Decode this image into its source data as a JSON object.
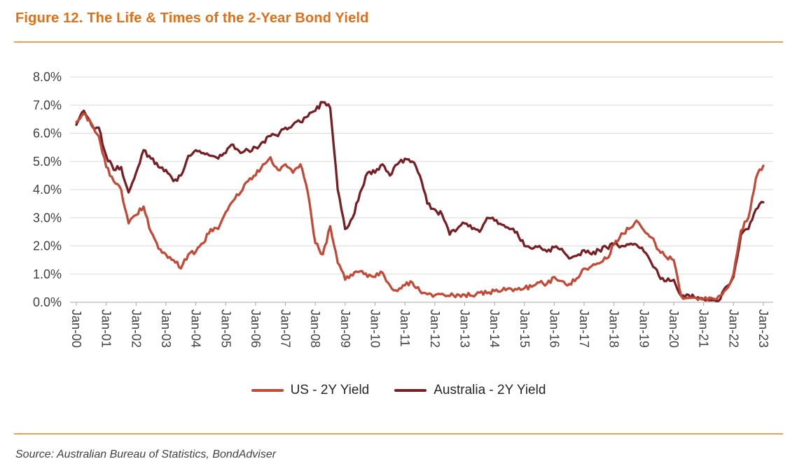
{
  "figure": {
    "title": "Figure 12. The Life & Times of the 2-Year Bond Yield",
    "source": "Source: Australian Bureau of Statistics, BondAdviser"
  },
  "colors": {
    "accent_orange": "#E06F1A",
    "rule_orange": "#E8A15A",
    "us_line": "#C24A38",
    "aus_line": "#762025",
    "grid": "#D9D9D9",
    "axis_line": "#A6A6A6",
    "axis_text": "#404040",
    "legend_text": "#262626",
    "source_text": "#404040"
  },
  "chart_data": {
    "type": "line",
    "title": "",
    "xlabel": "",
    "ylabel": "",
    "ylim": [
      0,
      8
    ],
    "grid": "horizontal",
    "legend_position": "bottom",
    "x_frequency": "quarterly (Jan-2000 to Jan-2023)",
    "y_tick_labels": [
      "0.0%",
      "1.0%",
      "2.0%",
      "3.0%",
      "4.0%",
      "5.0%",
      "6.0%",
      "7.0%",
      "8.0%"
    ],
    "x_tick_labels": [
      "Jan-00",
      "Jan-01",
      "Jan-02",
      "Jan-03",
      "Jan-04",
      "Jan-05",
      "Jan-06",
      "Jan-07",
      "Jan-08",
      "Jan-09",
      "Jan-10",
      "Jan-11",
      "Jan-12",
      "Jan-13",
      "Jan-14",
      "Jan-15",
      "Jan-16",
      "Jan-17",
      "Jan-18",
      "Jan-19",
      "Jan-20",
      "Jan-21",
      "Jan-22",
      "Jan-23"
    ],
    "series": [
      {
        "name": "US - 2Y Yield",
        "color": "#C24A38",
        "values": [
          6.4,
          6.7,
          6.35,
          5.9,
          4.8,
          4.3,
          4.0,
          2.8,
          3.1,
          3.4,
          2.5,
          1.9,
          1.7,
          1.5,
          1.2,
          1.7,
          1.8,
          2.1,
          2.6,
          2.6,
          3.2,
          3.6,
          3.9,
          4.3,
          4.5,
          4.9,
          5.15,
          4.7,
          4.9,
          4.6,
          4.9,
          3.9,
          2.1,
          1.7,
          2.7,
          1.4,
          0.8,
          0.95,
          1.1,
          0.9,
          0.9,
          1.05,
          0.6,
          0.4,
          0.6,
          0.7,
          0.4,
          0.28,
          0.25,
          0.3,
          0.22,
          0.28,
          0.27,
          0.23,
          0.34,
          0.32,
          0.4,
          0.42,
          0.5,
          0.45,
          0.5,
          0.55,
          0.7,
          0.65,
          0.9,
          0.75,
          0.65,
          0.85,
          1.2,
          1.28,
          1.38,
          1.55,
          2.05,
          2.45,
          2.6,
          2.9,
          2.55,
          2.3,
          1.85,
          1.6,
          1.5,
          0.22,
          0.15,
          0.15,
          0.12,
          0.16,
          0.22,
          0.45,
          1.0,
          2.55,
          3.0,
          4.4,
          4.85
        ]
      },
      {
        "name": "Australia - 2Y Yield",
        "color": "#762025",
        "values": [
          6.3,
          6.8,
          6.3,
          6.2,
          5.2,
          4.7,
          4.8,
          3.9,
          4.6,
          5.4,
          5.1,
          4.8,
          4.7,
          4.3,
          4.5,
          5.2,
          5.4,
          5.3,
          5.2,
          5.1,
          5.3,
          5.6,
          5.3,
          5.4,
          5.5,
          5.7,
          5.9,
          5.9,
          6.2,
          6.3,
          6.4,
          6.6,
          6.8,
          7.1,
          6.9,
          4.0,
          2.6,
          3.0,
          3.9,
          4.6,
          4.6,
          4.9,
          4.5,
          4.9,
          5.1,
          5.0,
          4.5,
          3.5,
          3.3,
          3.1,
          2.4,
          2.6,
          2.8,
          2.6,
          2.5,
          3.0,
          2.9,
          2.75,
          2.6,
          2.5,
          2.0,
          1.9,
          2.0,
          1.8,
          1.95,
          1.9,
          1.55,
          1.65,
          1.85,
          1.7,
          1.85,
          1.95,
          2.05,
          2.0,
          2.05,
          2.05,
          1.8,
          1.4,
          0.95,
          0.75,
          0.8,
          0.22,
          0.26,
          0.15,
          0.1,
          0.07,
          0.05,
          0.55,
          0.9,
          2.4,
          2.6,
          3.3,
          3.55
        ]
      }
    ]
  }
}
